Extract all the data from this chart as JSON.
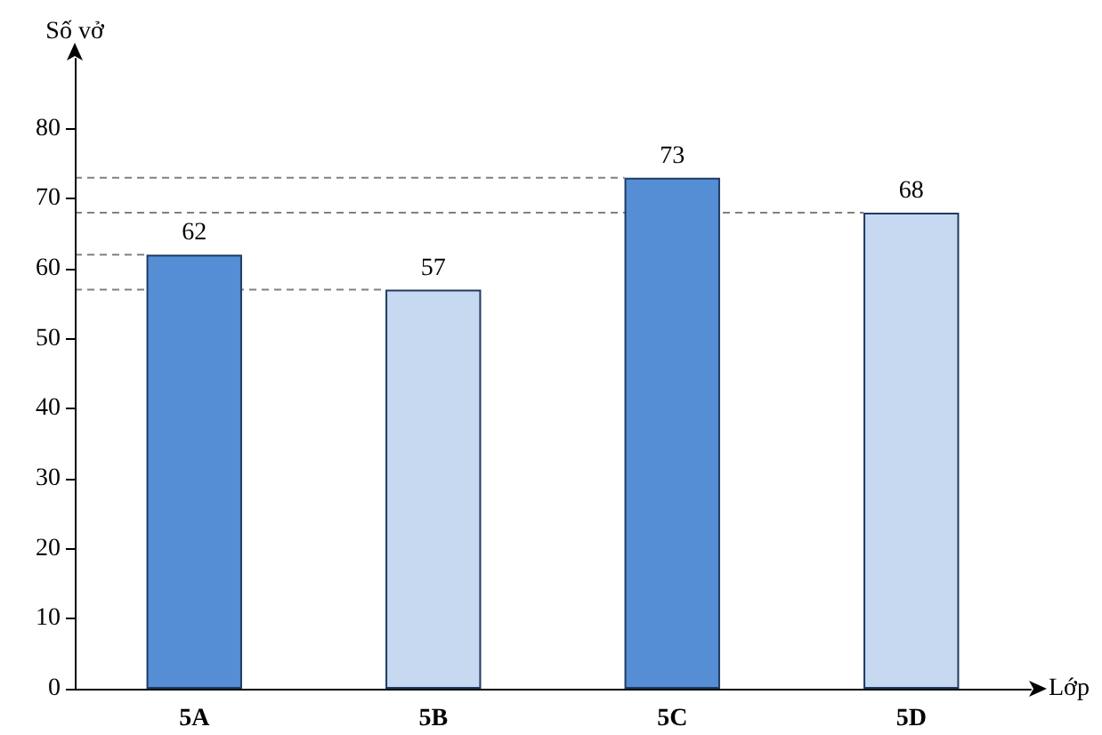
{
  "chart_data": {
    "type": "bar",
    "xlabel": "Lớp",
    "ylabel": "Số vở",
    "categories": [
      "5A",
      "5B",
      "5C",
      "5D"
    ],
    "values": [
      62,
      57,
      73,
      68
    ],
    "colors": [
      "#558ed5",
      "#c6d9f1",
      "#558ed5",
      "#c6d9f1"
    ],
    "ylim": [
      0,
      90
    ],
    "yticks": [
      0,
      10,
      20,
      30,
      40,
      50,
      60,
      70,
      80
    ],
    "grid": false,
    "data_labels": true,
    "ref_lines": [
      {
        "axis": "y",
        "value": 62,
        "color": "#808080",
        "line_style": "dashed"
      },
      {
        "axis": "y",
        "value": 57,
        "color": "#808080",
        "line_style": "dashed"
      },
      {
        "axis": "y",
        "value": 73,
        "color": "#808080",
        "line_style": "dashed"
      },
      {
        "axis": "y",
        "value": 68,
        "color": "#808080",
        "line_style": "dashed"
      }
    ]
  }
}
